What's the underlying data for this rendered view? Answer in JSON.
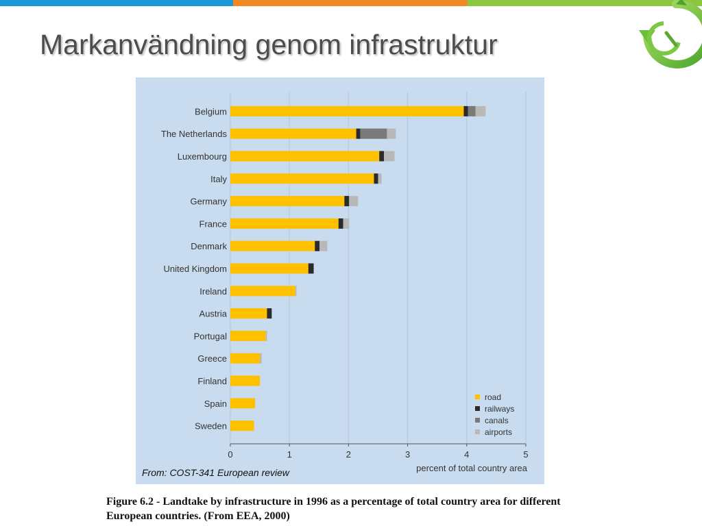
{
  "slide": {
    "title": "Markanvändning genom infrastruktur",
    "topbar_colors": [
      "#1a9bd7",
      "#f08a24",
      "#8cc63f"
    ],
    "logo_icon": "recycle-arrow-icon"
  },
  "source_note": "From: COST-341 European review",
  "caption": "Figure 6.2 - Landtake by infrastructure in 1996 as a percentage of total country area for different European countries. (From EEA, 2000)",
  "chart_data": {
    "type": "bar",
    "orientation": "horizontal",
    "stacked": true,
    "categories": [
      "Belgium",
      "The Netherlands",
      "Luxembourg",
      "Italy",
      "Germany",
      "France",
      "Denmark",
      "United Kingdom",
      "Ireland",
      "Austria",
      "Portugal",
      "Greece",
      "Finland",
      "Spain",
      "Sweden"
    ],
    "series": [
      {
        "name": "road",
        "color": "#ffc000",
        "values": [
          3.95,
          2.13,
          2.52,
          2.43,
          1.93,
          1.83,
          1.43,
          1.32,
          1.1,
          0.62,
          0.6,
          0.5,
          0.5,
          0.42,
          0.4
        ]
      },
      {
        "name": "railways",
        "color": "#2b2b2b",
        "values": [
          0.07,
          0.07,
          0.08,
          0.07,
          0.08,
          0.08,
          0.08,
          0.09,
          0.0,
          0.08,
          0.0,
          0.0,
          0.0,
          0.0,
          0.0
        ]
      },
      {
        "name": "canals",
        "color": "#7a7a7a",
        "values": [
          0.13,
          0.45,
          0.0,
          0.0,
          0.0,
          0.0,
          0.0,
          0.0,
          0.0,
          0.0,
          0.0,
          0.0,
          0.0,
          0.0,
          0.0
        ]
      },
      {
        "name": "airports",
        "color": "#b8b8b8",
        "values": [
          0.17,
          0.15,
          0.18,
          0.06,
          0.15,
          0.1,
          0.13,
          0.0,
          0.02,
          0.0,
          0.02,
          0.03,
          0.0,
          0.0,
          0.0
        ]
      }
    ],
    "xlabel": "percent of total country area",
    "xlim": [
      0,
      5
    ],
    "xticks": [
      "0",
      "1",
      "2",
      "3",
      "4",
      "5"
    ],
    "grid": true,
    "legend_position": "bottom-right"
  }
}
